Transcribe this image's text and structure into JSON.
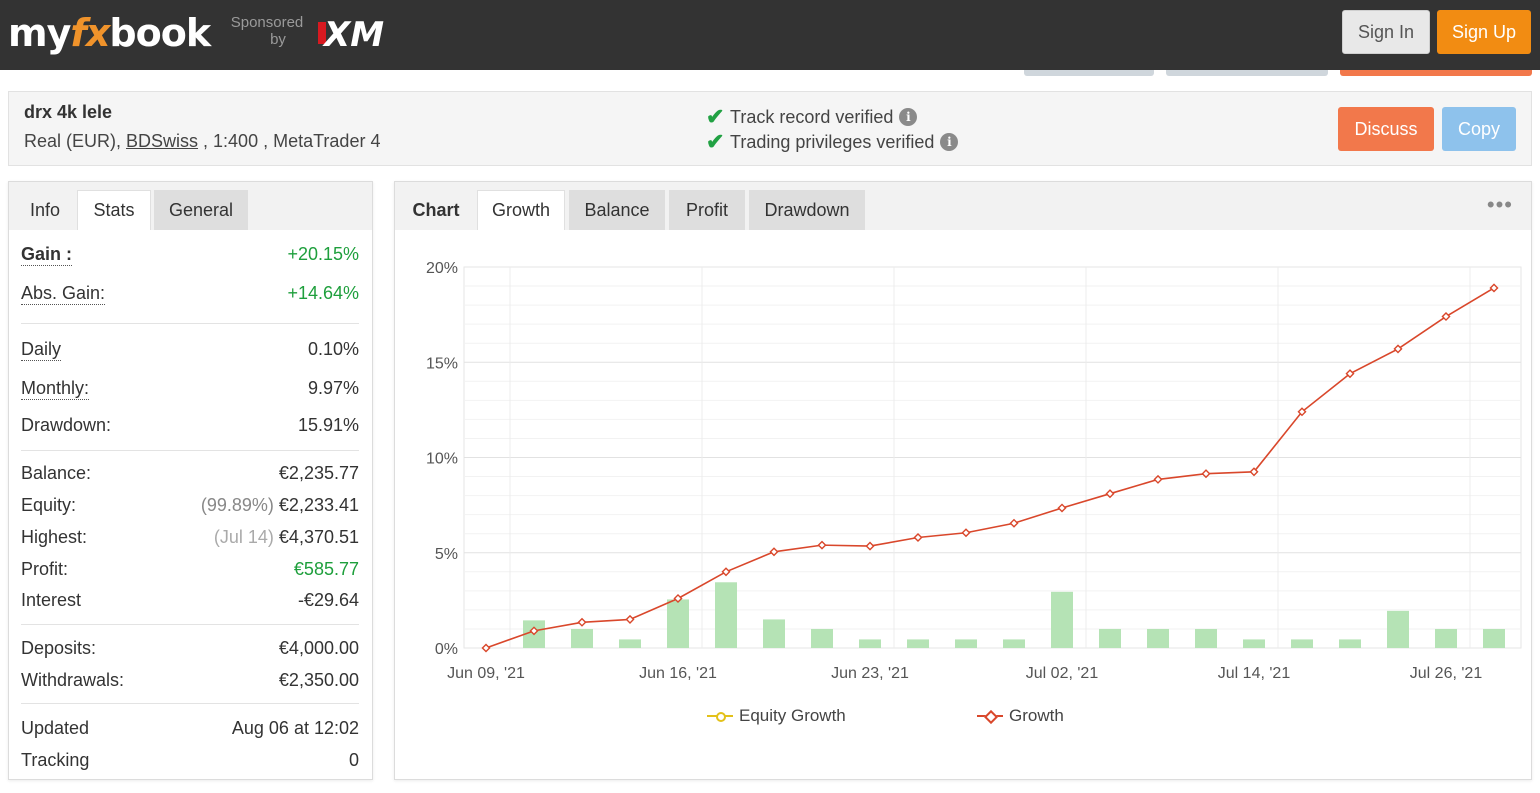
{
  "header": {
    "logo_prefix": "my",
    "logo_fx": "fx",
    "logo_suffix": "book",
    "sponsored": "Sponsored",
    "by": "by",
    "sponsor_brand": "XM",
    "sign_in": "Sign In",
    "sign_up": "Sign Up"
  },
  "system": {
    "name": "drx 4k lele",
    "account_type": "Real (EUR), ",
    "broker": "BDSwiss",
    "leverage_platform": " , 1:400 , MetaTrader 4",
    "track_record": "Track record verified",
    "trading_privileges": "Trading privileges verified",
    "discuss": "Discuss",
    "copy": "Copy"
  },
  "stats_tabs": [
    "Info",
    "Stats",
    "General"
  ],
  "stats": {
    "gain_label": "Gain :",
    "gain_value": "+20.15%",
    "abs_gain_label": "Abs. Gain:",
    "abs_gain_value": "+14.64%",
    "daily_label": "Daily",
    "daily_value": "0.10%",
    "monthly_label": "Monthly:",
    "monthly_value": "9.97%",
    "drawdown_label": "Drawdown:",
    "drawdown_value": "15.91%",
    "balance_label": "Balance:",
    "balance_value": "€2,235.77",
    "equity_label": "Equity:",
    "equity_pct": "(99.89%)",
    "equity_value": "€2,233.41",
    "highest_label": "Highest:",
    "highest_date": "(Jul 14)",
    "highest_value": "€4,370.51",
    "profit_label": "Profit:",
    "profit_value": "€585.77",
    "interest_label": "Interest",
    "interest_value": "-€29.64",
    "deposits_label": "Deposits:",
    "deposits_value": "€4,000.00",
    "withdrawals_label": "Withdrawals:",
    "withdrawals_value": "€2,350.00",
    "updated_label": "Updated",
    "updated_value": "Aug 06 at 12:02",
    "tracking_label": "Tracking",
    "tracking_value": "0"
  },
  "chart_tabs": [
    "Chart",
    "Growth",
    "Balance",
    "Profit",
    "Drawdown"
  ],
  "colors": {
    "growth_line": "#d9472b",
    "equity_line": "#e3c11a",
    "bar_fill": "#b5e3b5",
    "positive": "#1e9f3c",
    "accent_orange": "#f28c12"
  },
  "chart_data": {
    "type": "line",
    "ylim": [
      0,
      20
    ],
    "yticks": [
      "0%",
      "5%",
      "10%",
      "15%",
      "20%"
    ],
    "xticks": [
      "Jun 09, '21",
      "Jun 16, '21",
      "Jun 23, '21",
      "Jul 02, '21",
      "Jul 14, '21",
      "Jul 26, '21"
    ],
    "legend": [
      "Equity Growth",
      "Growth"
    ],
    "series": [
      {
        "name": "Growth",
        "values": [
          0.0,
          0.9,
          1.35,
          1.5,
          2.6,
          4.0,
          5.05,
          5.4,
          5.35,
          5.8,
          6.05,
          6.55,
          7.35,
          8.1,
          8.85,
          9.15,
          9.25,
          12.4,
          14.4,
          15.7,
          17.4,
          18.9
        ]
      },
      {
        "name": "Daily bars",
        "values": [
          null,
          1.45,
          1.0,
          0.45,
          2.55,
          3.45,
          1.5,
          1.0,
          0.45,
          0.45,
          0.45,
          0.45,
          2.95,
          1.0,
          1.0,
          1.0,
          0.45,
          0.45,
          0.45,
          1.95,
          1.0,
          1.0
        ]
      }
    ]
  }
}
